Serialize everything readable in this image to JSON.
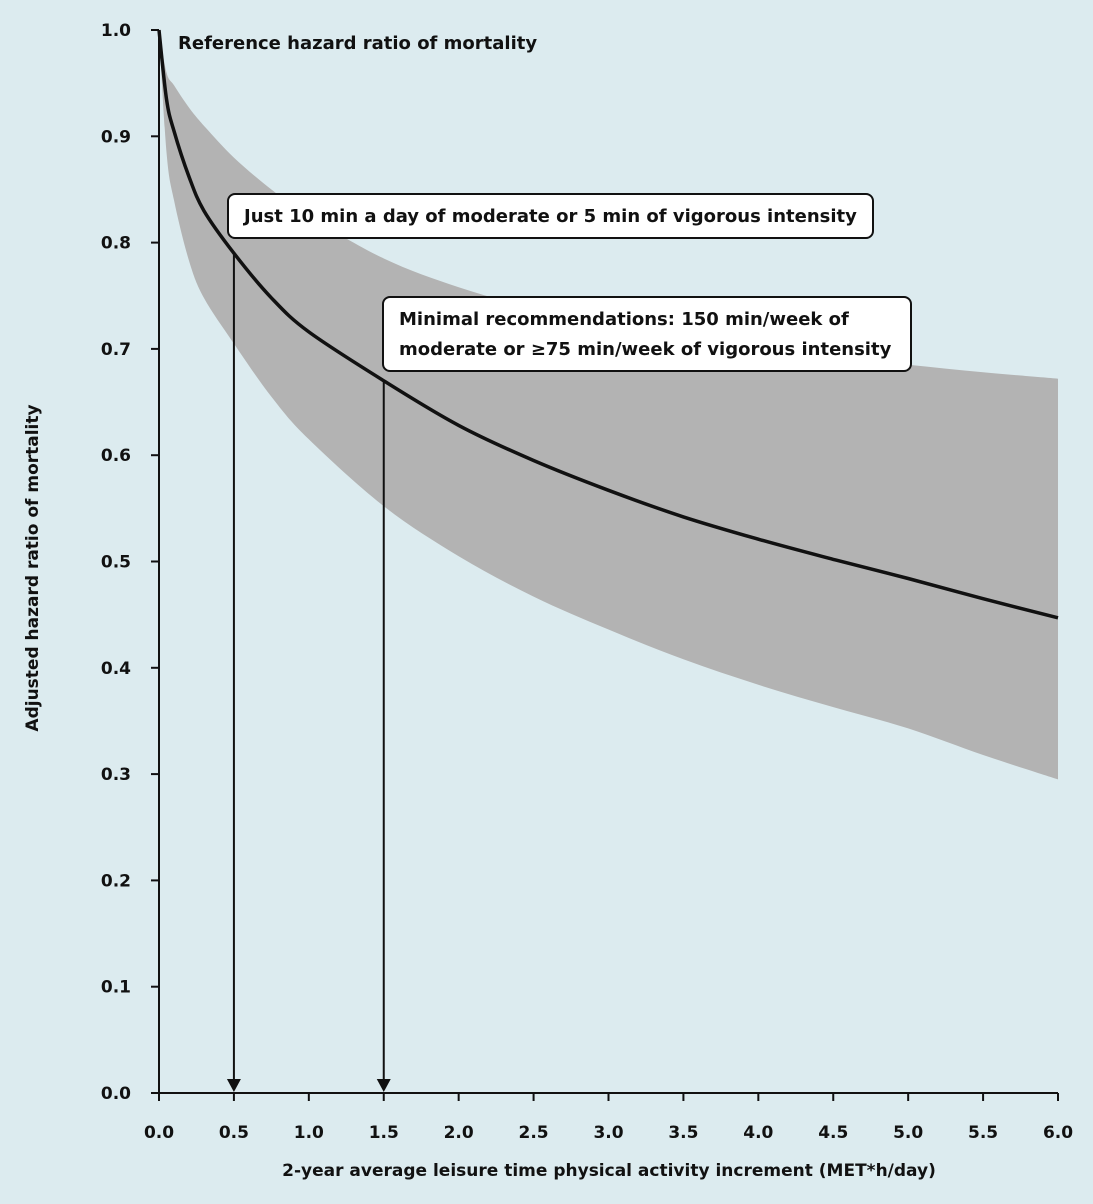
{
  "colors": {
    "background": "#dcebef",
    "band": "#b3b3b3",
    "line": "#111111",
    "box_fill": "#ffffff",
    "box_stroke": "#111111"
  },
  "chart_data": {
    "type": "line",
    "title": "",
    "xlabel": "2-year average leisure time physical activity increment (MET*h/day)",
    "ylabel": "Adjusted hazard ratio of mortality",
    "xlim": [
      0,
      6
    ],
    "ylim": [
      0,
      1
    ],
    "x_ticks": [
      "0.0",
      "0.5",
      "1.0",
      "1.5",
      "2.0",
      "2.5",
      "3.0",
      "3.5",
      "4.0",
      "4.5",
      "5.0",
      "5.5",
      "6.0"
    ],
    "y_ticks": [
      "0.0",
      "0.1",
      "0.2",
      "0.3",
      "0.4",
      "0.5",
      "0.6",
      "0.7",
      "0.8",
      "0.9",
      "1.0"
    ],
    "grid": false,
    "series": [
      {
        "role": "estimate",
        "x": [
          0,
          0.05,
          0.1,
          0.2,
          0.3,
          0.5,
          0.75,
          1.0,
          1.5,
          2.0,
          2.5,
          3.0,
          3.5,
          4.0,
          4.5,
          5.0,
          5.5,
          6.0
        ],
        "y": [
          1.0,
          0.935,
          0.905,
          0.862,
          0.83,
          0.79,
          0.748,
          0.716,
          0.67,
          0.628,
          0.595,
          0.567,
          0.542,
          0.521,
          0.502,
          0.484,
          0.465,
          0.447
        ]
      }
    ],
    "confidence_band": {
      "x": [
        0,
        0.05,
        0.1,
        0.2,
        0.3,
        0.5,
        0.75,
        1.0,
        1.5,
        2.0,
        2.5,
        3.0,
        3.5,
        4.0,
        4.5,
        5.0,
        5.5,
        6.0
      ],
      "upper": [
        1.0,
        0.96,
        0.948,
        0.927,
        0.91,
        0.88,
        0.85,
        0.825,
        0.785,
        0.758,
        0.738,
        0.72,
        0.71,
        0.7,
        0.692,
        0.685,
        0.678,
        0.672
      ],
      "lower": [
        1.0,
        0.885,
        0.84,
        0.783,
        0.748,
        0.705,
        0.655,
        0.615,
        0.552,
        0.505,
        0.467,
        0.436,
        0.408,
        0.384,
        0.363,
        0.343,
        0.318,
        0.295
      ]
    },
    "reference_label": "Reference hazard ratio of mortality",
    "annotations": [
      {
        "x": 0.5,
        "y": 0.79,
        "lines": [
          "Just 10 min a day of moderate or 5 min of vigorous intensity"
        ]
      },
      {
        "x": 1.5,
        "y": 0.67,
        "lines": [
          "Minimal recommendations: 150 min/week of",
          "moderate or ≥75 min/week of vigorous intensity"
        ]
      }
    ]
  }
}
